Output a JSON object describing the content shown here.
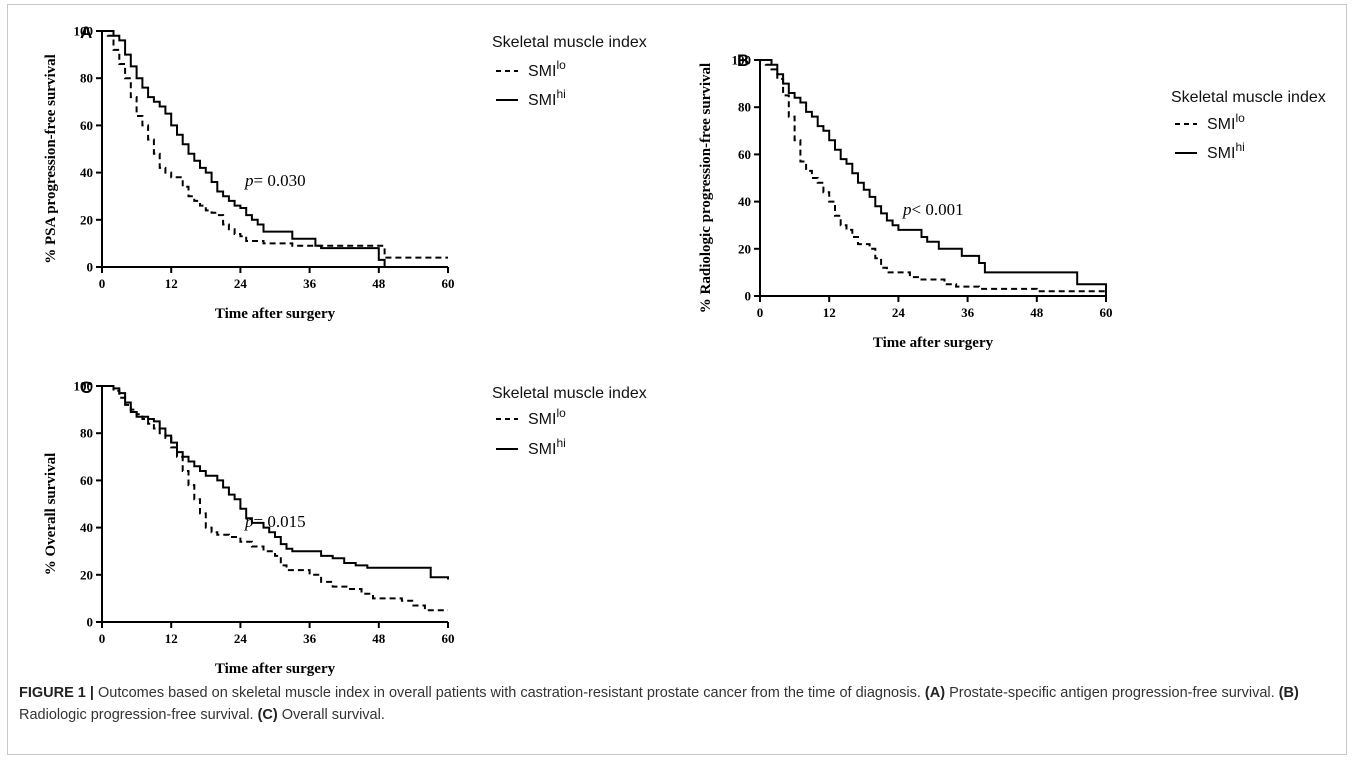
{
  "chart_data": [
    {
      "type": "line",
      "panel": "A",
      "ylabel": "% PSA progression-free survival",
      "xlabel": "Time after surgery",
      "xlim": [
        0,
        60
      ],
      "ylim": [
        0,
        100
      ],
      "xticks": [
        0,
        12,
        24,
        36,
        48,
        60
      ],
      "yticks": [
        0,
        20,
        40,
        60,
        80,
        100
      ],
      "annotation": {
        "p": "p",
        "rest": "= 0.030"
      },
      "legend": {
        "title": "Skeletal muscle index",
        "items": [
          {
            "base": "SMI",
            "sup": "lo",
            "style": "dashed"
          },
          {
            "base": "SMI",
            "sup": "hi",
            "style": "solid"
          }
        ]
      },
      "series": [
        {
          "name": "SMIlo",
          "style": "dashed",
          "points": [
            [
              0,
              100
            ],
            [
              1,
              98
            ],
            [
              2,
              92
            ],
            [
              3,
              86
            ],
            [
              4,
              80
            ],
            [
              5,
              72
            ],
            [
              6,
              64
            ],
            [
              7,
              60
            ],
            [
              8,
              54
            ],
            [
              9,
              48
            ],
            [
              10,
              42
            ],
            [
              11,
              40
            ],
            [
              12,
              38
            ],
            [
              13,
              38
            ],
            [
              14,
              34
            ],
            [
              15,
              30
            ],
            [
              16,
              28
            ],
            [
              17,
              26
            ],
            [
              18,
              24
            ],
            [
              19,
              23
            ],
            [
              20,
              22
            ],
            [
              21,
              18
            ],
            [
              22,
              16
            ],
            [
              23,
              14
            ],
            [
              24,
              13
            ],
            [
              25,
              11
            ],
            [
              26,
              11
            ],
            [
              28,
              10
            ],
            [
              30,
              10
            ],
            [
              33,
              9
            ],
            [
              36,
              9
            ],
            [
              42,
              9
            ],
            [
              49,
              9
            ],
            [
              49,
              4
            ],
            [
              60,
              4
            ]
          ]
        },
        {
          "name": "SMIhi",
          "style": "solid",
          "points": [
            [
              0,
              100
            ],
            [
              1,
              100
            ],
            [
              2,
              98
            ],
            [
              3,
              96
            ],
            [
              4,
              90
            ],
            [
              5,
              85
            ],
            [
              6,
              80
            ],
            [
              7,
              76
            ],
            [
              8,
              72
            ],
            [
              9,
              70
            ],
            [
              10,
              68
            ],
            [
              11,
              65
            ],
            [
              12,
              60
            ],
            [
              13,
              56
            ],
            [
              14,
              52
            ],
            [
              15,
              48
            ],
            [
              16,
              45
            ],
            [
              17,
              42
            ],
            [
              18,
              40
            ],
            [
              19,
              36
            ],
            [
              20,
              32
            ],
            [
              21,
              30
            ],
            [
              22,
              28
            ],
            [
              23,
              26
            ],
            [
              24,
              25
            ],
            [
              25,
              22
            ],
            [
              26,
              20
            ],
            [
              27,
              18
            ],
            [
              28,
              15
            ],
            [
              32,
              15
            ],
            [
              33,
              12
            ],
            [
              36,
              12
            ],
            [
              37,
              9
            ],
            [
              38,
              8
            ],
            [
              44,
              8
            ],
            [
              47,
              8
            ],
            [
              48,
              3
            ],
            [
              49,
              3
            ],
            [
              49,
              0
            ],
            [
              50,
              0
            ]
          ]
        }
      ]
    },
    {
      "type": "line",
      "panel": "B",
      "ylabel": "% Radiologic progression-free survival",
      "xlabel": "Time after surgery",
      "xlim": [
        0,
        60
      ],
      "ylim": [
        0,
        100
      ],
      "xticks": [
        0,
        12,
        24,
        36,
        48,
        60
      ],
      "yticks": [
        0,
        20,
        40,
        60,
        80,
        100
      ],
      "annotation": {
        "p": "p",
        "rest": "< 0.001"
      },
      "legend": {
        "title": "Skeletal muscle index",
        "items": [
          {
            "base": "SMI",
            "sup": "lo",
            "style": "dashed"
          },
          {
            "base": "SMI",
            "sup": "hi",
            "style": "solid"
          }
        ]
      },
      "series": [
        {
          "name": "SMIlo",
          "style": "dashed",
          "points": [
            [
              0,
              100
            ],
            [
              1,
              98
            ],
            [
              2,
              96
            ],
            [
              3,
              92
            ],
            [
              4,
              85
            ],
            [
              5,
              76
            ],
            [
              6,
              66
            ],
            [
              7,
              57
            ],
            [
              8,
              53
            ],
            [
              9,
              50
            ],
            [
              10,
              48
            ],
            [
              11,
              44
            ],
            [
              12,
              40
            ],
            [
              13,
              34
            ],
            [
              14,
              30
            ],
            [
              15,
              28
            ],
            [
              16,
              25
            ],
            [
              17,
              22
            ],
            [
              18,
              22
            ],
            [
              19,
              20
            ],
            [
              20,
              16
            ],
            [
              21,
              12
            ],
            [
              22,
              10
            ],
            [
              24,
              10
            ],
            [
              26,
              8
            ],
            [
              28,
              7
            ],
            [
              30,
              7
            ],
            [
              32,
              5
            ],
            [
              34,
              4
            ],
            [
              38,
              3
            ],
            [
              42,
              3
            ],
            [
              48,
              2
            ],
            [
              54,
              2
            ],
            [
              60,
              2
            ]
          ]
        },
        {
          "name": "SMIhi",
          "style": "solid",
          "points": [
            [
              0,
              100
            ],
            [
              2,
              98
            ],
            [
              3,
              94
            ],
            [
              4,
              90
            ],
            [
              5,
              86
            ],
            [
              6,
              84
            ],
            [
              7,
              82
            ],
            [
              8,
              78
            ],
            [
              9,
              76
            ],
            [
              10,
              72
            ],
            [
              11,
              70
            ],
            [
              12,
              66
            ],
            [
              13,
              62
            ],
            [
              14,
              58
            ],
            [
              15,
              56
            ],
            [
              16,
              52
            ],
            [
              17,
              48
            ],
            [
              18,
              45
            ],
            [
              19,
              42
            ],
            [
              20,
              38
            ],
            [
              21,
              35
            ],
            [
              22,
              32
            ],
            [
              23,
              30
            ],
            [
              24,
              28
            ],
            [
              27,
              28
            ],
            [
              28,
              25
            ],
            [
              29,
              23
            ],
            [
              30,
              23
            ],
            [
              31,
              20
            ],
            [
              34,
              20
            ],
            [
              35,
              17
            ],
            [
              37,
              17
            ],
            [
              38,
              14
            ],
            [
              39,
              10
            ],
            [
              54,
              10
            ],
            [
              55,
              5
            ],
            [
              60,
              5
            ],
            [
              60,
              0
            ]
          ]
        }
      ]
    },
    {
      "type": "line",
      "panel": "C",
      "ylabel": "% Overall survival",
      "xlabel": "Time after surgery",
      "xlim": [
        0,
        60
      ],
      "ylim": [
        0,
        100
      ],
      "xticks": [
        0,
        12,
        24,
        36,
        48,
        60
      ],
      "yticks": [
        0,
        20,
        40,
        60,
        80,
        100
      ],
      "annotation": {
        "p": "p",
        "rest": "= 0.015"
      },
      "legend": {
        "title": "Skeletal muscle index",
        "items": [
          {
            "base": "SMI",
            "sup": "lo",
            "style": "dashed"
          },
          {
            "base": "SMI",
            "sup": "hi",
            "style": "solid"
          }
        ]
      },
      "series": [
        {
          "name": "SMIlo",
          "style": "dashed",
          "points": [
            [
              0,
              100
            ],
            [
              2,
              98
            ],
            [
              3,
              95
            ],
            [
              4,
              92
            ],
            [
              5,
              90
            ],
            [
              6,
              88
            ],
            [
              7,
              86
            ],
            [
              8,
              84
            ],
            [
              9,
              82
            ],
            [
              10,
              80
            ],
            [
              11,
              78
            ],
            [
              12,
              74
            ],
            [
              13,
              70
            ],
            [
              14,
              64
            ],
            [
              15,
              58
            ],
            [
              16,
              52
            ],
            [
              17,
              46
            ],
            [
              18,
              40
            ],
            [
              19,
              38
            ],
            [
              20,
              37
            ],
            [
              22,
              36
            ],
            [
              24,
              34
            ],
            [
              26,
              32
            ],
            [
              28,
              30
            ],
            [
              30,
              28
            ],
            [
              31,
              24
            ],
            [
              32,
              22
            ],
            [
              35,
              22
            ],
            [
              36,
              20
            ],
            [
              38,
              17
            ],
            [
              40,
              15
            ],
            [
              43,
              14
            ],
            [
              45,
              12
            ],
            [
              47,
              10
            ],
            [
              49,
              10
            ],
            [
              52,
              9
            ],
            [
              54,
              7
            ],
            [
              56,
              5
            ],
            [
              60,
              5
            ]
          ]
        },
        {
          "name": "SMIhi",
          "style": "solid",
          "points": [
            [
              0,
              100
            ],
            [
              2,
              99
            ],
            [
              3,
              97
            ],
            [
              4,
              93
            ],
            [
              5,
              89
            ],
            [
              6,
              87
            ],
            [
              8,
              86
            ],
            [
              9,
              85
            ],
            [
              10,
              82
            ],
            [
              11,
              79
            ],
            [
              12,
              76
            ],
            [
              13,
              72
            ],
            [
              14,
              70
            ],
            [
              15,
              68
            ],
            [
              16,
              66
            ],
            [
              17,
              64
            ],
            [
              18,
              62
            ],
            [
              20,
              60
            ],
            [
              21,
              57
            ],
            [
              22,
              54
            ],
            [
              23,
              52
            ],
            [
              24,
              48
            ],
            [
              25,
              44
            ],
            [
              26,
              42
            ],
            [
              28,
              40
            ],
            [
              29,
              38
            ],
            [
              30,
              36
            ],
            [
              31,
              33
            ],
            [
              32,
              31
            ],
            [
              33,
              30
            ],
            [
              37,
              30
            ],
            [
              38,
              28
            ],
            [
              40,
              27
            ],
            [
              42,
              25
            ],
            [
              44,
              24
            ],
            [
              46,
              23
            ],
            [
              56,
              23
            ],
            [
              57,
              19
            ],
            [
              59,
              19
            ],
            [
              60,
              18
            ]
          ]
        }
      ]
    }
  ],
  "caption": {
    "label": "FIGURE 1 |",
    "text": " Outcomes based on skeletal muscle index in overall patients with castration-resistant prostate cancer from the time of diagnosis. ",
    "a_label": "(A)",
    "a_text": " Prostate-specific antigen progression-free survival. ",
    "b_label": "(B)",
    "b_text": " Radiologic progression-free survival. ",
    "c_label": "(C)",
    "c_text": " Overall survival."
  }
}
